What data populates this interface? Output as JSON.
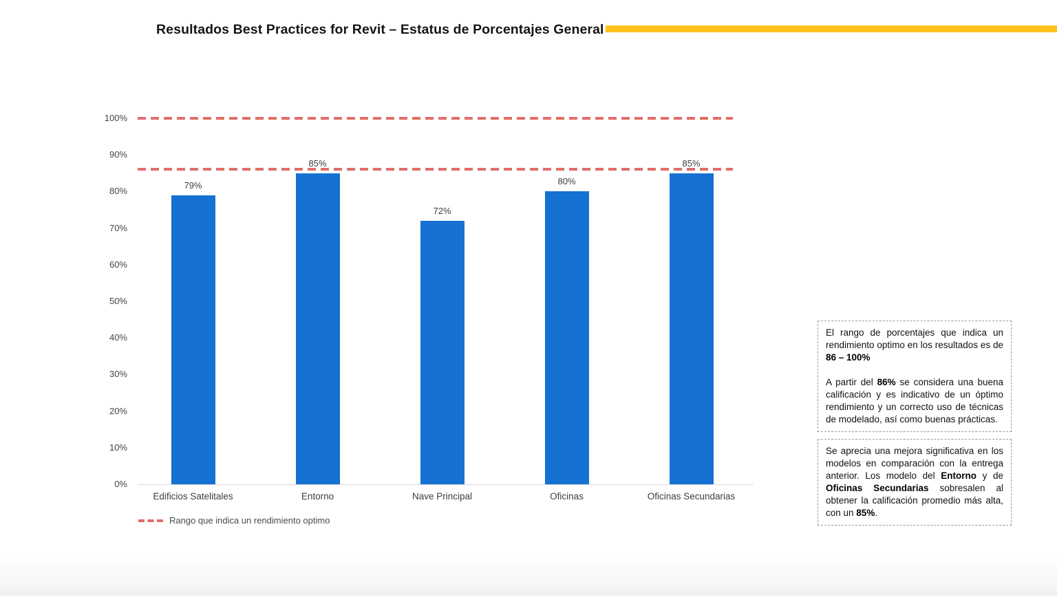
{
  "slide": {
    "title": "Resultados Best Practices for Revit – Estatus de Porcentajes General"
  },
  "colors": {
    "bar_blue": "#1571D2",
    "dash_red": "#E06E69",
    "accent_yellow": "#FFC21E",
    "axis_text": "#454545",
    "axis_line": "#D9D9D9",
    "note_border": "#9A9A9A"
  },
  "chart_data": {
    "type": "bar",
    "title": "Resultados Best Practices for Revit – Estatus de Porcentajes General",
    "categories": [
      "Edificios Satelitales",
      "Entorno",
      "Nave Principal",
      "Oficinas",
      "Oficinas Secundarias"
    ],
    "values": [
      79,
      85,
      72,
      80,
      85
    ],
    "value_labels": [
      "79%",
      "85%",
      "72%",
      "80%",
      "85%"
    ],
    "y_ticks": [
      "100%",
      "90%",
      "80%",
      "70%",
      "60%",
      "50%",
      "40%",
      "30%",
      "20%",
      "10%",
      "0%"
    ],
    "ylim": [
      0,
      100
    ],
    "xlabel": "",
    "ylabel": "",
    "grid": false,
    "bar_color": "#1571D2",
    "reference_lines": [
      {
        "value": 100,
        "style": "dashed",
        "color": "#E06E69"
      },
      {
        "value": 86,
        "style": "dashed",
        "color": "#E06E69"
      }
    ],
    "legend": {
      "position": "bottom-left",
      "items": [
        {
          "label": "Rango que indica un rendimiento optimo",
          "marker": "red-dashed-line"
        }
      ]
    }
  },
  "notes_boxes": [
    {
      "paragraphs": [
        [
          {
            "t": "El rango de porcentajes que indica un rendimiento optimo en los resultados es de "
          },
          {
            "t": "86 – 100%",
            "b": true
          }
        ],
        [
          {
            "t": "A partir del "
          },
          {
            "t": "86%",
            "b": true
          },
          {
            "t": " se considera una buena calificación y es indicativo de un óptimo rendimiento y un correcto uso de técnicas de modelado, así como buenas prácticas."
          }
        ]
      ]
    },
    {
      "paragraphs": [
        [
          {
            "t": "Se aprecia una mejora significativa en los modelos en comparación con la entrega anterior. Los modelo del "
          },
          {
            "t": "Entorno",
            "b": true
          },
          {
            "t": " y de "
          },
          {
            "t": "Oficinas Secundarias",
            "b": true
          },
          {
            "t": " sobresalen al obtener la calificación promedio más alta, con un "
          },
          {
            "t": "85%",
            "b": true
          },
          {
            "t": "."
          }
        ]
      ]
    }
  ]
}
